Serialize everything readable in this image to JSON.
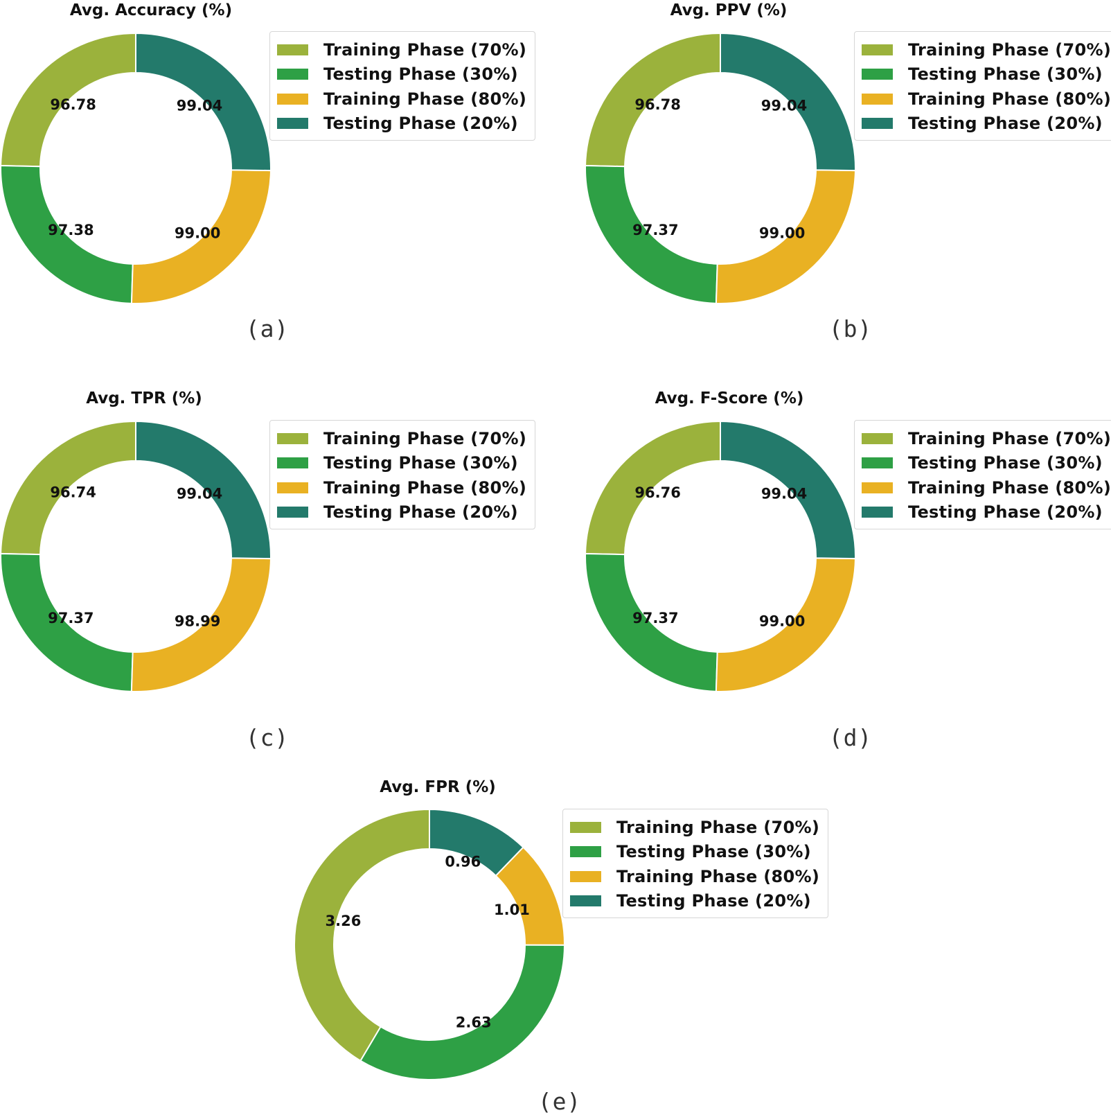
{
  "colors": {
    "training_70": "#9bb23c",
    "testing_30": "#2ea045",
    "training_80": "#e9b123",
    "testing_20": "#237a6b"
  },
  "chart_data": [
    {
      "id": "a",
      "type": "pie",
      "style": "donut",
      "title": "Avg. Accuracy (%)",
      "panel_label": "(a)",
      "legend": [
        "Training Phase (70%)",
        "Testing Phase (30%)",
        "Training Phase (80%)",
        "Testing Phase (20%)"
      ],
      "legend_placement": "right",
      "series": [
        {
          "name": "Training Phase (70%)",
          "value": 96.78,
          "label": "96.78"
        },
        {
          "name": "Testing Phase (30%)",
          "value": 97.38,
          "label": "97.38"
        },
        {
          "name": "Training Phase (80%)",
          "value": 99.0,
          "label": "99.00"
        },
        {
          "name": "Testing Phase (20%)",
          "value": 99.04,
          "label": "99.04"
        }
      ]
    },
    {
      "id": "b",
      "type": "pie",
      "style": "donut",
      "title": "Avg. PPV (%)",
      "panel_label": "(b)",
      "legend": [
        "Training Phase (70%)",
        "Testing Phase (30%)",
        "Training Phase (80%)",
        "Testing Phase (20%)"
      ],
      "legend_placement": "right",
      "series": [
        {
          "name": "Training Phase (70%)",
          "value": 96.78,
          "label": "96.78"
        },
        {
          "name": "Testing Phase (30%)",
          "value": 97.37,
          "label": "97.37"
        },
        {
          "name": "Training Phase (80%)",
          "value": 99.0,
          "label": "99.00"
        },
        {
          "name": "Testing Phase (20%)",
          "value": 99.04,
          "label": "99.04"
        }
      ]
    },
    {
      "id": "c",
      "type": "pie",
      "style": "donut",
      "title": "Avg. TPR (%)",
      "panel_label": "(c)",
      "legend": [
        "Training Phase (70%)",
        "Testing Phase (30%)",
        "Training Phase (80%)",
        "Testing Phase (20%)"
      ],
      "legend_placement": "right",
      "series": [
        {
          "name": "Training Phase (70%)",
          "value": 96.74,
          "label": "96.74"
        },
        {
          "name": "Testing Phase (30%)",
          "value": 97.37,
          "label": "97.37"
        },
        {
          "name": "Training Phase (80%)",
          "value": 98.99,
          "label": "98.99"
        },
        {
          "name": "Testing Phase (20%)",
          "value": 99.04,
          "label": "99.04"
        }
      ]
    },
    {
      "id": "d",
      "type": "pie",
      "style": "donut",
      "title": "Avg. F-Score (%)",
      "panel_label": "(d)",
      "legend": [
        "Training Phase (70%)",
        "Testing Phase (30%)",
        "Training Phase (80%)",
        "Testing Phase (20%)"
      ],
      "legend_placement": "right",
      "series": [
        {
          "name": "Training Phase (70%)",
          "value": 96.76,
          "label": "96.76"
        },
        {
          "name": "Testing Phase (30%)",
          "value": 97.37,
          "label": "97.37"
        },
        {
          "name": "Training Phase (80%)",
          "value": 99.0,
          "label": "99.00"
        },
        {
          "name": "Testing Phase (20%)",
          "value": 99.04,
          "label": "99.04"
        }
      ]
    },
    {
      "id": "e",
      "type": "pie",
      "style": "donut",
      "title": "Avg. FPR (%)",
      "panel_label": "(e)",
      "legend": [
        "Training Phase (70%)",
        "Testing Phase (30%)",
        "Training Phase (80%)",
        "Testing Phase (20%)"
      ],
      "legend_placement": "right",
      "series": [
        {
          "name": "Training Phase (70%)",
          "value": 3.26,
          "label": "3.26"
        },
        {
          "name": "Testing Phase (30%)",
          "value": 2.63,
          "label": "2.63"
        },
        {
          "name": "Training Phase (80%)",
          "value": 1.01,
          "label": "1.01"
        },
        {
          "name": "Testing Phase (20%)",
          "value": 0.96,
          "label": "0.96"
        }
      ]
    }
  ]
}
